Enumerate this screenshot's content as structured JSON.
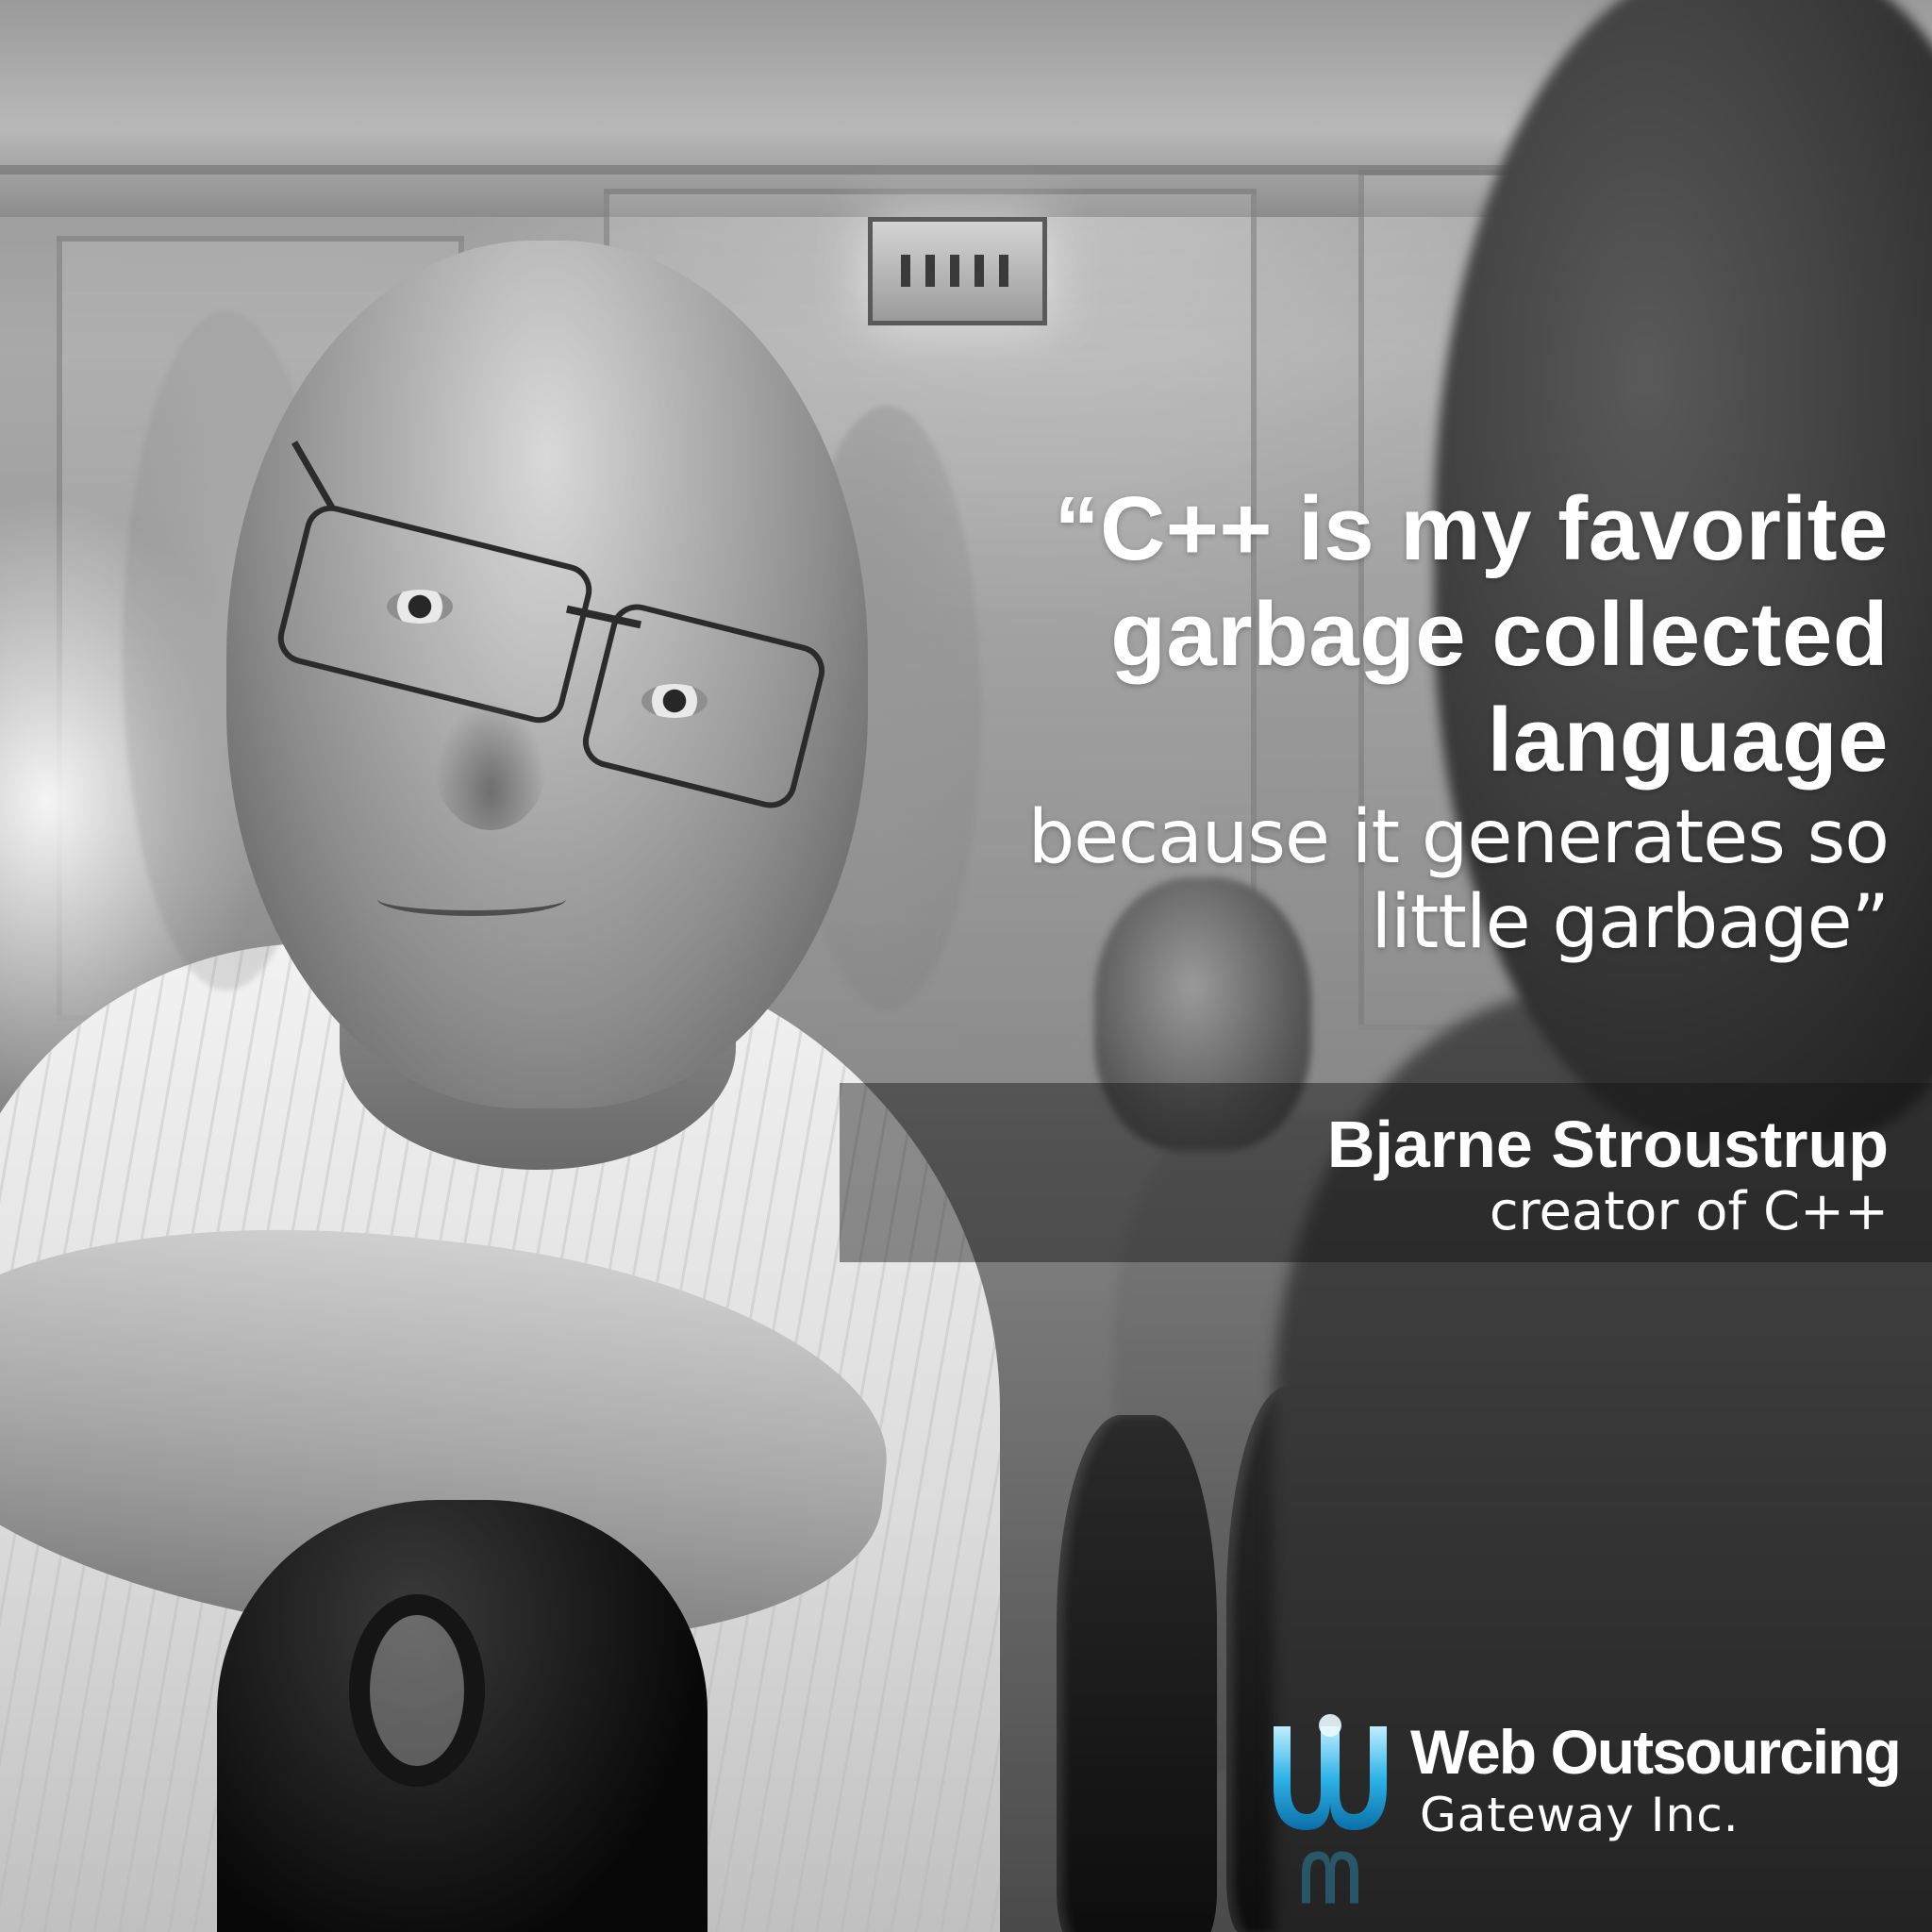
{
  "quote": {
    "line1": "“C++ is my favorite",
    "line2": "garbage collected",
    "line3": "language",
    "line4": "because it generates so",
    "line5": "little garbage”"
  },
  "attribution": {
    "name": "Bjarne Stroustrup",
    "role": "creator of C++"
  },
  "logo": {
    "brand_line1": "Web Outsourcing",
    "brand_line2": "Gateway Inc.",
    "mark_icon": "wog-logo-icon",
    "mark_color": "#2fb3e8"
  },
  "colors": {
    "text": "#ffffff"
  }
}
